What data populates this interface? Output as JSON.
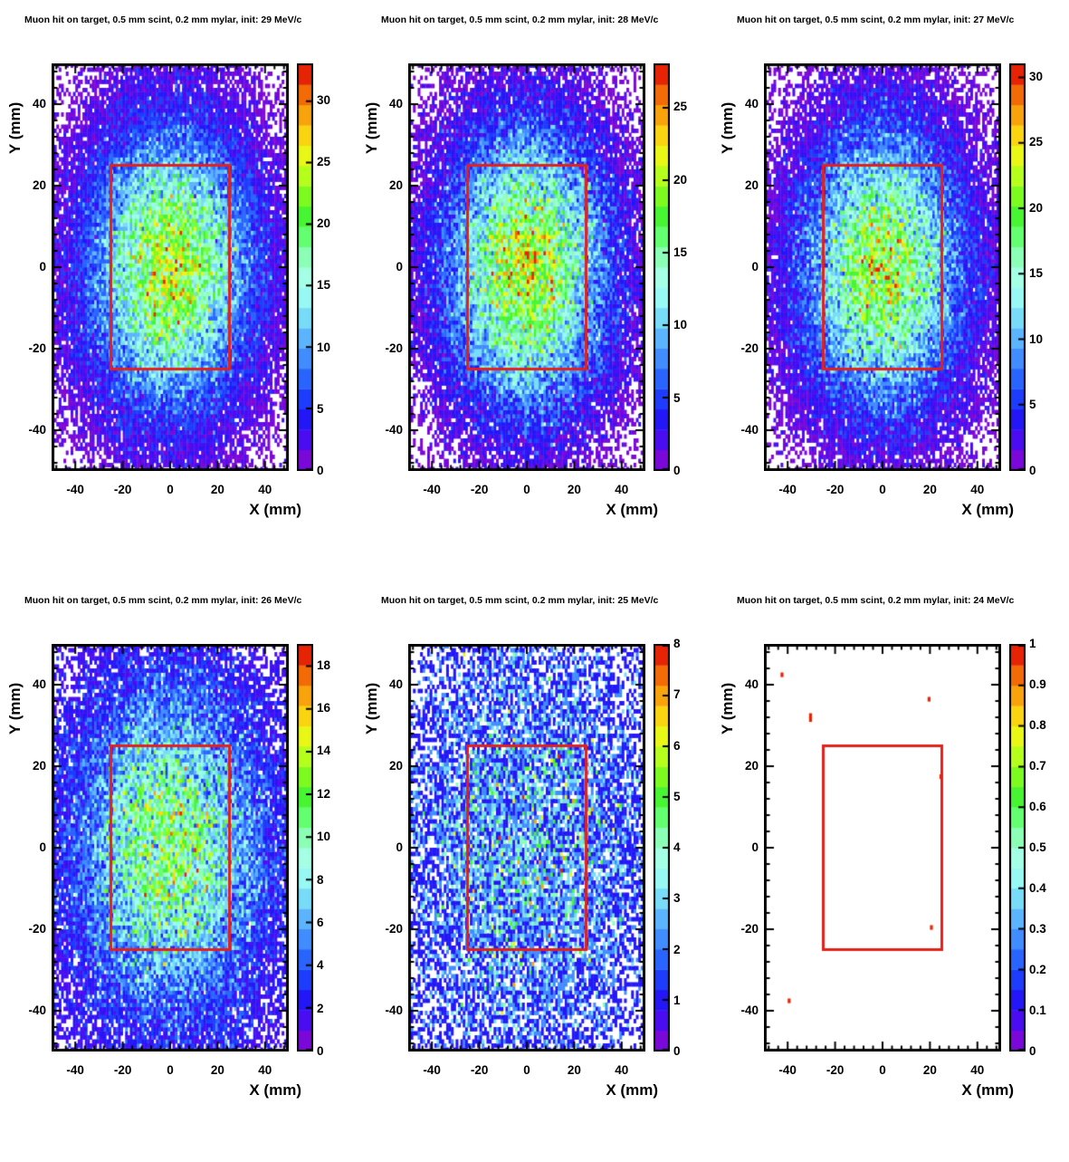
{
  "palette": [
    "#7a08d9",
    "#4a0df2",
    "#2317f7",
    "#1d3cfb",
    "#2a64ff",
    "#418cff",
    "#5cb4ff",
    "#78dcf8",
    "#97f8f4",
    "#a4ffe4",
    "#8bffb5",
    "#63ff70",
    "#47f532",
    "#7dfb20",
    "#b6fe1b",
    "#e8f716",
    "#fbd411",
    "#f9a30c",
    "#f26b07",
    "#e62405"
  ],
  "box_color": "#e3201b",
  "axis_color": "#000000",
  "chart_data": [
    {
      "type": "heatmap",
      "title": "Muon hit on target, 0.5 mm scint, 0.2 mm mylar, init: 29 MeV/c",
      "momentum_MeV_c": 29,
      "xlabel": "X (mm)",
      "ylabel": "Y (mm)",
      "xlim": [
        -50,
        50
      ],
      "ylim": [
        -50,
        50
      ],
      "x_ticks": [
        -40,
        -20,
        0,
        20,
        40
      ],
      "y_ticks": [
        -40,
        -20,
        0,
        20,
        40
      ],
      "bins": [
        100,
        100
      ],
      "zmax": 33,
      "colorbar_ticks": [
        0,
        5,
        10,
        15,
        20,
        25,
        30
      ],
      "distribution": {
        "shape": "gaussian2d",
        "center": [
          0,
          0
        ],
        "sigma_mm": 22,
        "peak_counts_per_bin": 23
      },
      "acceptance_box": {
        "x": [
          -25,
          25
        ],
        "y": [
          -25,
          25
        ]
      }
    },
    {
      "type": "heatmap",
      "title": "Muon hit on target, 0.5 mm scint, 0.2 mm mylar, init: 28 MeV/c",
      "momentum_MeV_c": 28,
      "xlabel": "X (mm)",
      "ylabel": "Y (mm)",
      "xlim": [
        -50,
        50
      ],
      "ylim": [
        -50,
        50
      ],
      "x_ticks": [
        -40,
        -20,
        0,
        20,
        40
      ],
      "y_ticks": [
        -40,
        -20,
        0,
        20,
        40
      ],
      "bins": [
        100,
        100
      ],
      "zmax": 28,
      "colorbar_ticks": [
        0,
        5,
        10,
        15,
        20,
        25
      ],
      "distribution": {
        "shape": "gaussian2d",
        "center": [
          0,
          0
        ],
        "sigma_mm": 22,
        "peak_counts_per_bin": 20
      },
      "acceptance_box": {
        "x": [
          -25,
          25
        ],
        "y": [
          -25,
          25
        ]
      }
    },
    {
      "type": "heatmap",
      "title": "Muon hit on target, 0.5 mm scint, 0.2 mm mylar, init: 27 MeV/c",
      "momentum_MeV_c": 27,
      "xlabel": "X (mm)",
      "ylabel": "Y (mm)",
      "xlim": [
        -50,
        50
      ],
      "ylim": [
        -50,
        50
      ],
      "x_ticks": [
        -40,
        -20,
        0,
        20,
        40
      ],
      "y_ticks": [
        -40,
        -20,
        0,
        20,
        40
      ],
      "bins": [
        100,
        100
      ],
      "zmax": 31,
      "colorbar_ticks": [
        0,
        5,
        10,
        15,
        20,
        25,
        30
      ],
      "distribution": {
        "shape": "gaussian2d",
        "center": [
          0,
          0
        ],
        "sigma_mm": 22,
        "peak_counts_per_bin": 21
      },
      "acceptance_box": {
        "x": [
          -25,
          25
        ],
        "y": [
          -25,
          25
        ]
      }
    },
    {
      "type": "heatmap",
      "title": "Muon hit on target, 0.5 mm scint, 0.2 mm mylar, init: 26 MeV/c",
      "momentum_MeV_c": 26,
      "xlabel": "X (mm)",
      "ylabel": "Y (mm)",
      "xlim": [
        -50,
        50
      ],
      "ylim": [
        -50,
        50
      ],
      "x_ticks": [
        -40,
        -20,
        0,
        20,
        40
      ],
      "y_ticks": [
        -40,
        -20,
        0,
        20,
        40
      ],
      "bins": [
        100,
        100
      ],
      "zmax": 19,
      "colorbar_ticks": [
        0,
        2,
        4,
        6,
        8,
        10,
        12,
        14,
        16,
        18
      ],
      "distribution": {
        "shape": "gaussian2d",
        "center": [
          0,
          0
        ],
        "sigma_mm": 26,
        "peak_counts_per_bin": 11.5
      },
      "acceptance_box": {
        "x": [
          -25,
          25
        ],
        "y": [
          -25,
          25
        ]
      }
    },
    {
      "type": "heatmap",
      "title": "Muon hit on target, 0.5 mm scint, 0.2 mm mylar, init: 25 MeV/c",
      "momentum_MeV_c": 25,
      "xlabel": "X (mm)",
      "ylabel": "Y (mm)",
      "xlim": [
        -50,
        50
      ],
      "ylim": [
        -50,
        50
      ],
      "x_ticks": [
        -40,
        -20,
        0,
        20,
        40
      ],
      "y_ticks": [
        -40,
        -20,
        0,
        20,
        40
      ],
      "bins": [
        100,
        100
      ],
      "zmax": 8,
      "colorbar_ticks": [
        0,
        1,
        2,
        3,
        4,
        5,
        6,
        7,
        8
      ],
      "distribution": {
        "shape": "gaussian2d",
        "center": [
          0,
          0
        ],
        "sigma_mm": 34,
        "peak_counts_per_bin": 2.4
      },
      "acceptance_box": {
        "x": [
          -25,
          25
        ],
        "y": [
          -25,
          25
        ]
      }
    },
    {
      "type": "heatmap",
      "title": "Muon hit on target, 0.5 mm scint, 0.2 mm mylar, init: 24 MeV/c",
      "momentum_MeV_c": 24,
      "xlabel": "X (mm)",
      "ylabel": "Y (mm)",
      "xlim": [
        -50,
        50
      ],
      "ylim": [
        -50,
        50
      ],
      "x_ticks": [
        -40,
        -20,
        0,
        20,
        40
      ],
      "y_ticks": [
        -40,
        -20,
        0,
        20,
        40
      ],
      "bins": [
        100,
        100
      ],
      "zmax": 1,
      "colorbar_ticks": [
        0,
        0.1,
        0.2,
        0.3,
        0.4,
        0.5,
        0.6,
        0.7,
        0.8,
        0.9,
        1
      ],
      "distribution": null,
      "hit_points": [
        {
          "x": -43,
          "y": 42,
          "count": 1
        },
        {
          "x": 19,
          "y": 36,
          "count": 1
        },
        {
          "x": -31,
          "y": 32,
          "count": 1
        },
        {
          "x": -31,
          "y": 31,
          "count": 1
        },
        {
          "x": 24,
          "y": 17,
          "count": 1
        },
        {
          "x": 20,
          "y": -20,
          "count": 1
        },
        {
          "x": -40,
          "y": -38,
          "count": 1
        }
      ],
      "acceptance_box": {
        "x": [
          -25,
          25
        ],
        "y": [
          -25,
          25
        ]
      }
    }
  ]
}
